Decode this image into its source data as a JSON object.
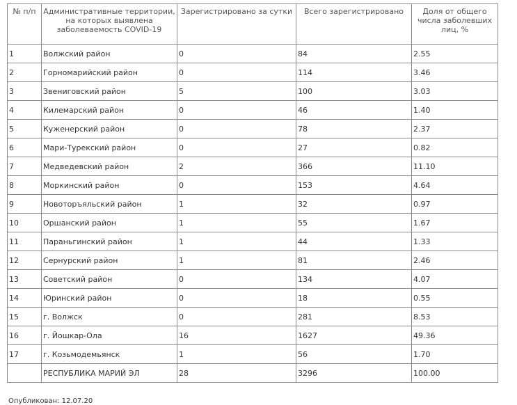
{
  "table": {
    "columns": [
      "№ п/п",
      "Административные территории, на которых выявлена заболеваемость COVID-19",
      "Зарегистрировано за сутки",
      "Всего зарегистрировано",
      "Доля от общего числа заболевших лиц, %"
    ],
    "rows": [
      [
        "1",
        "Волжский район",
        "0",
        "84",
        "2.55"
      ],
      [
        "2",
        "Горномарийский район",
        "0",
        "114",
        "3.46"
      ],
      [
        "3",
        "Звениговский район",
        "5",
        "100",
        "3.03"
      ],
      [
        "4",
        "Килемарский район",
        "0",
        "46",
        "1.40"
      ],
      [
        "5",
        "Куженерский район",
        "0",
        "78",
        "2.37"
      ],
      [
        "6",
        "Мари-Турекский район",
        "0",
        "27",
        "0.82"
      ],
      [
        "7",
        "Медведевский район",
        "2",
        "366",
        "11.10"
      ],
      [
        "8",
        "Моркинский район",
        "0",
        "153",
        "4.64"
      ],
      [
        "9",
        "Новоторъяльский район",
        "1",
        "32",
        "0.97"
      ],
      [
        "10",
        "Оршанский район",
        "1",
        "55",
        "1.67"
      ],
      [
        "11",
        "Параньгинский район",
        "1",
        "44",
        "1.33"
      ],
      [
        "12",
        "Сернурский район",
        "1",
        "81",
        "2.46"
      ],
      [
        "13",
        "Советский район",
        "0",
        "134",
        "4.07"
      ],
      [
        "14",
        "Юринский район",
        "0",
        "18",
        "0.55"
      ],
      [
        "15",
        "г. Волжск",
        "0",
        "281",
        "8.53"
      ],
      [
        "16",
        "г. Йошкар-Ола",
        "16",
        "1627",
        "49.36"
      ],
      [
        "17",
        "г. Козьмодемьянск",
        "1",
        "56",
        "1.70"
      ],
      [
        null,
        "РЕСПУБЛИКА МАРИЙ ЭЛ",
        "28",
        "3296",
        "100.00"
      ]
    ]
  },
  "footer": "Опубликован: 12.07.20"
}
